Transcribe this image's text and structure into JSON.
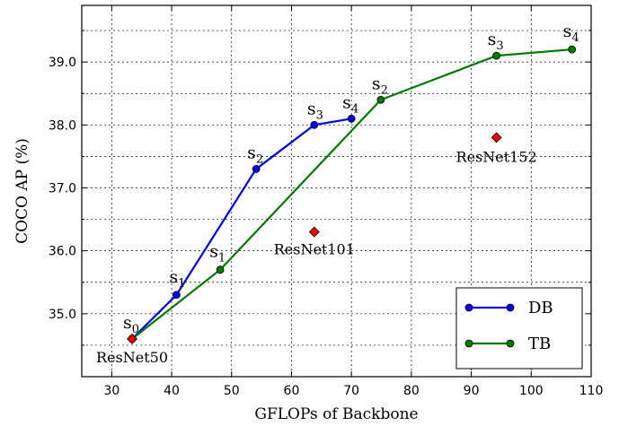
{
  "chart_data": {
    "type": "line",
    "xlabel": "GFLOPs of Backbone",
    "ylabel": "COCO AP (%)",
    "xlim": [
      25,
      110
    ],
    "ylim": [
      34.0,
      39.9
    ],
    "xticks": [
      30,
      40,
      50,
      60,
      70,
      80,
      90,
      100,
      110
    ],
    "yticks": [
      35.0,
      36.0,
      37.0,
      38.0,
      39.0
    ],
    "grid": true,
    "legend_position": "bottom-right",
    "series": [
      {
        "name": "DB",
        "color": "#0000ee",
        "points": [
          {
            "x": 33.4,
            "y": 34.6,
            "label": "s",
            "sub": "0"
          },
          {
            "x": 40.8,
            "y": 35.3,
            "label": "s",
            "sub": "1"
          },
          {
            "x": 54.1,
            "y": 37.3,
            "label": "s",
            "sub": "2"
          },
          {
            "x": 63.8,
            "y": 38.0,
            "label": "s",
            "sub": "3"
          },
          {
            "x": 70.0,
            "y": 38.1,
            "label": "s",
            "sub": "4"
          }
        ]
      },
      {
        "name": "TB",
        "color": "#007a00",
        "points": [
          {
            "x": 33.4,
            "y": 34.6,
            "label": "",
            "sub": ""
          },
          {
            "x": 48.1,
            "y": 35.7,
            "label": "s",
            "sub": "1"
          },
          {
            "x": 74.9,
            "y": 38.4,
            "label": "s",
            "sub": "2"
          },
          {
            "x": 94.2,
            "y": 39.1,
            "label": "s",
            "sub": "3"
          },
          {
            "x": 106.8,
            "y": 39.2,
            "label": "s",
            "sub": "4"
          }
        ]
      }
    ],
    "baselines": [
      {
        "name": "ResNet50",
        "x": 33.4,
        "y": 34.6
      },
      {
        "name": "ResNet101",
        "x": 63.8,
        "y": 36.3
      },
      {
        "name": "ResNet152",
        "x": 94.2,
        "y": 37.8
      }
    ],
    "baseline_color": "#ee0000"
  }
}
